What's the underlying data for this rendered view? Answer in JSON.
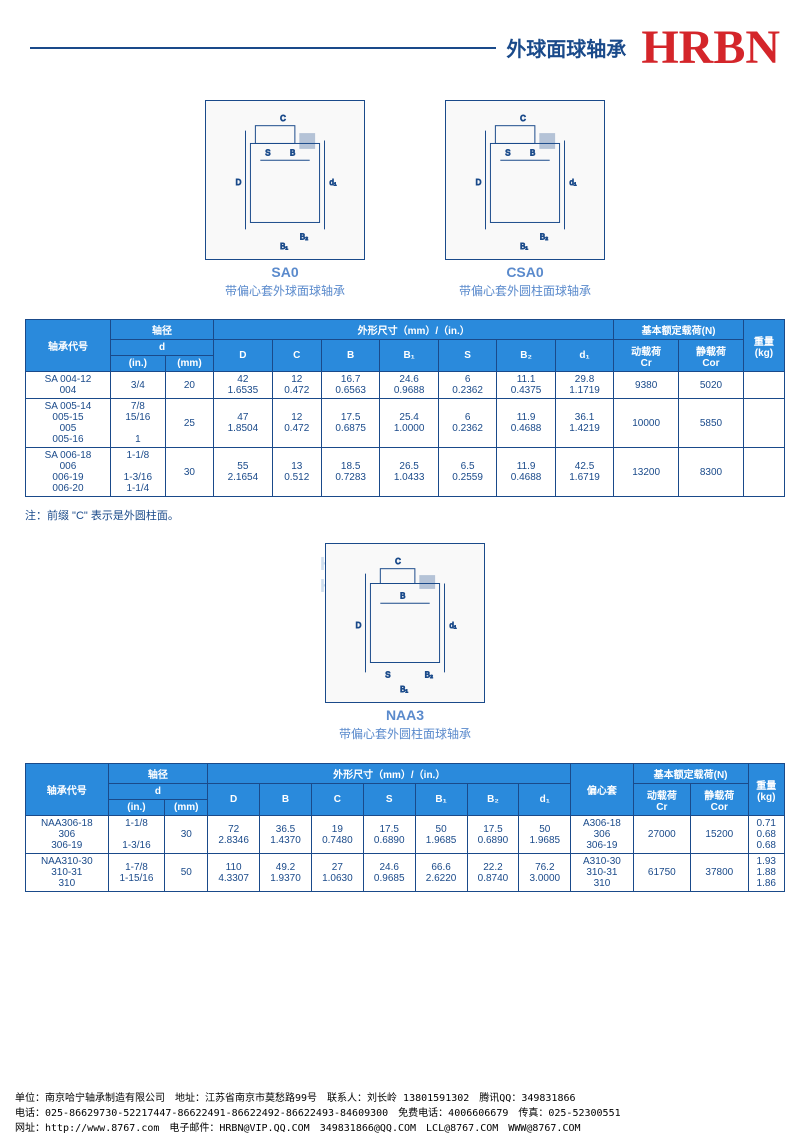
{
  "header": {
    "subtitle": "外球面球轴承",
    "brand": "HRBN"
  },
  "diagram1": {
    "label": "SA0",
    "desc": "带偏心套外球面球轴承"
  },
  "diagram2": {
    "label": "CSA0",
    "desc": "带偏心套外圆柱面球轴承"
  },
  "table1": {
    "h1": "轴承代号",
    "h2": "轴径",
    "h3": "外形尺寸（mm）/（in.）",
    "h4": "基本额定载荷(N)",
    "h5": "重量\n(kg)",
    "h2a": "d",
    "h2b": "(in.)",
    "h2c": "(mm)",
    "hD": "D",
    "hC": "C",
    "hB": "B",
    "hB1": "B₁",
    "hS": "S",
    "hB2": "B₂",
    "hd1": "d₁",
    "h4a": "动载荷\nCr",
    "h4b": "静载荷\nCor",
    "rows": [
      {
        "code": "SA 004-12\n004",
        "in": "3/4",
        "mm": "20",
        "D": "42\n1.6535",
        "C": "12\n0.472",
        "B": "16.7\n0.6563",
        "B1": "24.6\n0.9688",
        "S": "6\n0.2362",
        "B2": "11.1\n0.4375",
        "d1": "29.8\n1.1719",
        "Cr": "9380",
        "Cor": "5020",
        "kg": ""
      },
      {
        "code": "SA 005-14\n005-15\n005\n005-16",
        "in": "7/8\n15/16\n\n1",
        "mm": "25",
        "D": "47\n1.8504",
        "C": "12\n0.472",
        "B": "17.5\n0.6875",
        "B1": "25.4\n1.0000",
        "S": "6\n0.2362",
        "B2": "11.9\n0.4688",
        "d1": "36.1\n1.4219",
        "Cr": "10000",
        "Cor": "5850",
        "kg": ""
      },
      {
        "code": "SA 006-18\n006\n006-19\n006-20",
        "in": "1-1/8\n\n1-3/16\n1-1/4",
        "mm": "30",
        "D": "55\n2.1654",
        "C": "13\n0.512",
        "B": "18.5\n0.7283",
        "B1": "26.5\n1.0433",
        "S": "6.5\n0.2559",
        "B2": "11.9\n0.4688",
        "d1": "42.5\n1.6719",
        "Cr": "13200",
        "Cor": "8300",
        "kg": ""
      }
    ]
  },
  "note1": "注：前缀 \"C\" 表示是外圆柱面。",
  "diagram3": {
    "label": "NAA3",
    "desc": "带偏心套外圆柱面球轴承"
  },
  "table2": {
    "h1": "轴承代号",
    "h2": "轴径",
    "h3": "外形尺寸（mm）/（in.）",
    "hEcc": "偏心套",
    "h4": "基本额定载荷(N)",
    "h5": "重量\n(kg)",
    "h2a": "d",
    "h2b": "(in.)",
    "h2c": "(mm)",
    "hD": "D",
    "hB": "B",
    "hC": "C",
    "hS": "S",
    "hB1": "B₁",
    "hB2": "B₂",
    "hd1": "d₁",
    "h4a": "动载荷\nCr",
    "h4b": "静载荷\nCor",
    "rows": [
      {
        "code": "NAA306-18\n306\n306-19",
        "in": "1-1/8\n\n1-3/16",
        "mm": "30",
        "D": "72\n2.8346",
        "B": "36.5\n1.4370",
        "C": "19\n0.7480",
        "S": "17.5\n0.6890",
        "B1": "50\n1.9685",
        "B2": "17.5\n0.6890",
        "d1": "50\n1.9685",
        "ecc": "A306-18\n306\n306-19",
        "Cr": "27000",
        "Cor": "15200",
        "kg": "0.71\n0.68\n0.68"
      },
      {
        "code": "NAA310-30\n310-31\n310",
        "in": "1-7/8\n1-15/16",
        "mm": "50",
        "D": "110\n4.3307",
        "B": "49.2\n1.9370",
        "C": "27\n1.0630",
        "S": "24.6\n0.9685",
        "B1": "66.6\n2.6220",
        "B2": "22.2\n0.8740",
        "d1": "76.2\n3.0000",
        "ecc": "A310-30\n310-31\n310",
        "Cr": "61750",
        "Cor": "37800",
        "kg": "1.93\n1.88\n1.86"
      }
    ]
  },
  "footer": {
    "l1": "单位：南京哈宁轴承制造有限公司　地址：江苏省南京市莫愁路99号　联系人：刘长岭 13801591302　腾讯QQ：349831866",
    "l2": "电话：025-86629730-52217447-86622491-86622492-86622493-84609300　免费电话：4006606679　传真：025-52300551",
    "l3": "网址：http://www.8767.com　电子邮件：HRBN@VIP.QQ.COM　349831866@QQ.COM　LCL@8767.COM　WWW@8767.COM"
  },
  "watermark": "HRBN哈宁轴承\nHRBNBEARINGS",
  "colors": {
    "blue": "#1a4a8a",
    "headerBlue": "#2a8adc",
    "red": "#d4252a",
    "lightBlue": "#5a8acc"
  }
}
